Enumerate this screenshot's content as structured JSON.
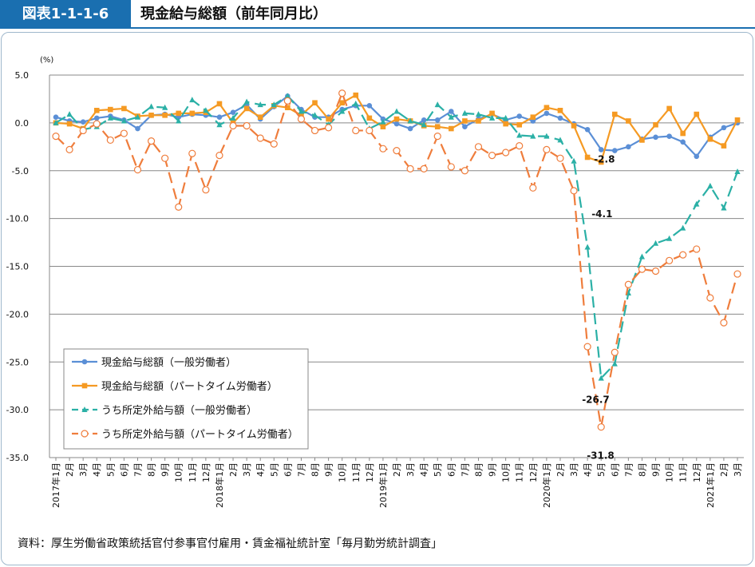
{
  "header": {
    "figure_number": "図表1-1-1-6",
    "title": "現金給与総額（前年同月比）"
  },
  "source": "資料：厚生労働省政策統括官付参事官付雇用・賃金福祉統計室「毎月勤労統計調査」",
  "chart_data": {
    "type": "line",
    "title": "現金給与総額（前年同月比）",
    "ylabel": "(%)",
    "ylim": [
      -35,
      5
    ],
    "yticks": [
      "5.0",
      "0.0",
      "-5.0",
      "-10.0",
      "-15.0",
      "-20.0",
      "-25.0",
      "-30.0",
      "-35.0"
    ],
    "grid": true,
    "legend_position": "bottom-left",
    "x_labels": [
      "2017年1月",
      "2月",
      "3月",
      "4月",
      "5月",
      "6月",
      "7月",
      "8月",
      "9月",
      "10月",
      "11月",
      "12月",
      "2018年1月",
      "2月",
      "3月",
      "4月",
      "5月",
      "6月",
      "7月",
      "8月",
      "9月",
      "10月",
      "11月",
      "12月",
      "2019年1月",
      "2月",
      "3月",
      "4月",
      "5月",
      "6月",
      "7月",
      "8月",
      "9月",
      "10月",
      "11月",
      "12月",
      "2020年1月",
      "2月",
      "3月",
      "4月",
      "5月",
      "6月",
      "7月",
      "8月",
      "9月",
      "10月",
      "11月",
      "12月",
      "2021年1月",
      "2月",
      "3月"
    ],
    "series": [
      {
        "name": "現金給与総額（一般労働者）",
        "color": "#5b8fd6",
        "marker": "circle",
        "dashed": false,
        "values": [
          0.6,
          0.2,
          0.1,
          0.5,
          0.7,
          0.3,
          -0.6,
          0.8,
          0.9,
          0.6,
          0.9,
          0.8,
          0.6,
          1.1,
          1.9,
          0.4,
          1.7,
          2.8,
          1.4,
          0.6,
          0.6,
          1.4,
          1.8,
          1.8,
          0.4,
          -0.1,
          -0.6,
          0.3,
          0.3,
          1.2,
          -0.4,
          0.4,
          0.9,
          0.3,
          0.7,
          0.2,
          1.0,
          0.5,
          -0.1,
          -0.7,
          -2.8,
          -2.9,
          -2.5,
          -1.7,
          -1.5,
          -1.4,
          -2.0,
          -3.5,
          -1.5,
          -0.5,
          0.0
        ]
      },
      {
        "name": "現金給与総額（パートタイム労働者）",
        "color": "#f59a23",
        "marker": "square",
        "dashed": false,
        "values": [
          0.0,
          -0.1,
          -0.6,
          1.3,
          1.4,
          1.5,
          0.7,
          0.8,
          0.8,
          1.0,
          1.0,
          1.1,
          2.0,
          0.0,
          1.5,
          0.6,
          1.8,
          1.6,
          0.8,
          2.1,
          0.4,
          2.1,
          2.9,
          0.5,
          -0.4,
          0.4,
          0.2,
          -0.3,
          -0.4,
          -0.6,
          0.2,
          0.2,
          1.0,
          -0.1,
          -0.2,
          0.6,
          1.6,
          1.3,
          -0.3,
          -3.6,
          -4.1,
          0.9,
          0.2,
          -1.8,
          -0.2,
          1.5,
          -1.1,
          0.9,
          -1.7,
          -2.4,
          0.3
        ]
      },
      {
        "name": "うち所定外給与額（一般労働者）",
        "color": "#2bb0a6",
        "marker": "triangle",
        "dashed": true,
        "values": [
          0.0,
          0.9,
          -0.7,
          -0.4,
          0.5,
          0.2,
          0.6,
          1.7,
          1.6,
          0.2,
          2.4,
          1.3,
          -0.2,
          0.5,
          2.2,
          1.9,
          1.9,
          2.8,
          1.2,
          0.8,
          -0.2,
          1.2,
          2.0,
          -0.6,
          0.1,
          1.2,
          0.2,
          -0.2,
          1.9,
          0.6,
          1.0,
          0.9,
          0.5,
          0.5,
          -1.3,
          -1.4,
          -1.4,
          -1.8,
          -4.0,
          -13.0,
          -26.7,
          -25.2,
          -17.8,
          -14.0,
          -12.6,
          -12.1,
          -11.0,
          -8.5,
          -6.6,
          -8.9,
          -5.1
        ]
      },
      {
        "name": "うち所定外給与額（パートタイム労働者）",
        "color": "#ef7d3c",
        "marker": "open-circle",
        "dashed": true,
        "values": [
          -1.4,
          -2.8,
          -0.8,
          -0.1,
          -1.8,
          -1.1,
          -4.9,
          -1.9,
          -3.7,
          -8.8,
          -3.2,
          -7.0,
          -3.4,
          -0.3,
          -0.3,
          -1.6,
          -2.2,
          2.3,
          0.4,
          -0.8,
          -0.5,
          3.1,
          -0.8,
          -0.8,
          -2.7,
          -2.9,
          -4.8,
          -4.8,
          -1.4,
          -4.6,
          -5.0,
          -2.5,
          -3.4,
          -3.1,
          -2.4,
          -6.8,
          -2.8,
          -3.7,
          -7.1,
          -23.4,
          -31.8,
          -24.0,
          -16.9,
          -15.3,
          -15.5,
          -14.4,
          -13.8,
          -13.2,
          -18.3,
          -20.9,
          -15.8
        ]
      }
    ],
    "annotations": [
      {
        "text": "-2.8",
        "series": 0,
        "index": 40
      },
      {
        "text": "-4.1",
        "series": 1,
        "index": 40
      },
      {
        "text": "-26.7",
        "series": 2,
        "index": 40
      },
      {
        "text": "-31.8",
        "series": 3,
        "index": 40
      }
    ]
  }
}
